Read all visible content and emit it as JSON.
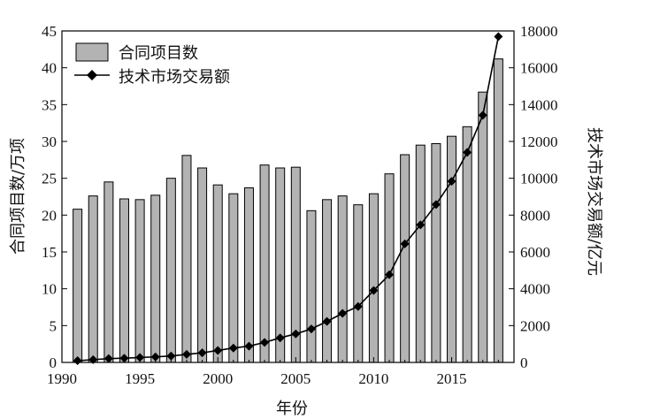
{
  "chart_data": {
    "type": "bar+line",
    "x_label": "年份",
    "y_left_label": "合同项目数/万项",
    "y_right_label": "技术市场交易额/亿元",
    "x_range": [
      1990,
      2019
    ],
    "x_ticks": [
      1990,
      1995,
      2000,
      2005,
      2010,
      2015
    ],
    "y_left_range": [
      0,
      45
    ],
    "y_left_ticks": [
      0,
      5,
      10,
      15,
      20,
      25,
      30,
      35,
      40,
      45
    ],
    "y_right_range": [
      0,
      18000
    ],
    "y_right_ticks": [
      0,
      2000,
      4000,
      6000,
      8000,
      10000,
      12000,
      14000,
      16000,
      18000
    ],
    "legend_position": "top-left",
    "years": [
      1991,
      1992,
      1993,
      1994,
      1995,
      1996,
      1997,
      1998,
      1999,
      2000,
      2001,
      2002,
      2003,
      2004,
      2005,
      2006,
      2007,
      2008,
      2009,
      2010,
      2011,
      2012,
      2013,
      2014,
      2015,
      2016,
      2017,
      2018
    ],
    "series": [
      {
        "name": "合同项目数",
        "kind": "bar",
        "axis": "left",
        "color": "#b3b3b3",
        "values": [
          20.8,
          22.6,
          24.5,
          22.2,
          22.1,
          22.7,
          25.0,
          28.1,
          26.4,
          24.1,
          22.9,
          23.7,
          26.8,
          26.4,
          26.5,
          20.6,
          22.1,
          22.6,
          21.4,
          22.9,
          25.6,
          28.2,
          29.5,
          29.7,
          30.7,
          32.0,
          36.7,
          41.2
        ]
      },
      {
        "name": "技术市场交易额",
        "kind": "line",
        "axis": "right",
        "color": "#000000",
        "marker": "diamond",
        "values": [
          95,
          150,
          208,
          229,
          268,
          300,
          351,
          436,
          523,
          651,
          783,
          884,
          1085,
          1334,
          1551,
          1818,
          2226,
          2665,
          3039,
          3907,
          4764,
          6437,
          7469,
          8577,
          9836,
          11407,
          13424,
          17697
        ]
      }
    ]
  }
}
